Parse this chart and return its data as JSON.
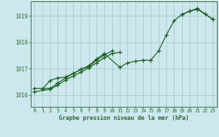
{
  "title": "Graphe pression niveau de la mer (hPa)",
  "bg_color": "#cce8ee",
  "grid_color": "#aacccc",
  "line_color": "#1a5c1a",
  "axis_color": "#336633",
  "xlim": [
    -0.5,
    23.5
  ],
  "ylim": [
    1015.55,
    1019.55
  ],
  "yticks": [
    1016,
    1017,
    1018,
    1019
  ],
  "xticks": [
    0,
    1,
    2,
    3,
    4,
    5,
    6,
    7,
    8,
    9,
    10,
    11,
    12,
    13,
    14,
    15,
    16,
    17,
    18,
    19,
    20,
    21,
    22,
    23
  ],
  "series": [
    {
      "x": [
        0,
        2,
        3,
        4,
        5,
        6,
        7,
        8,
        9,
        11,
        12,
        13,
        14,
        15,
        16,
        17,
        18,
        19,
        20,
        21,
        23
      ],
      "y": [
        1016.25,
        1016.25,
        1016.45,
        1016.65,
        1016.82,
        1016.97,
        1017.12,
        1017.37,
        1017.57,
        1017.05,
        1017.22,
        1017.28,
        1017.32,
        1017.32,
        1017.68,
        1018.28,
        1018.82,
        1019.05,
        1019.18,
        1019.25,
        1018.87
      ]
    },
    {
      "x": [
        1,
        2,
        3,
        4,
        5,
        6,
        7,
        8,
        9,
        10
      ],
      "y": [
        1016.22,
        1016.55,
        1016.65,
        1016.68,
        1016.82,
        1016.97,
        1017.07,
        1017.32,
        1017.52,
        1017.67
      ]
    },
    {
      "x": [
        0,
        2,
        3,
        4,
        5,
        6,
        7,
        8,
        9,
        10,
        11
      ],
      "y": [
        1016.12,
        1016.22,
        1016.37,
        1016.57,
        1016.72,
        1016.87,
        1017.02,
        1017.22,
        1017.42,
        1017.57,
        1017.62
      ]
    },
    {
      "x": [
        19,
        20,
        21,
        22,
        23
      ],
      "y": [
        1019.05,
        1019.18,
        1019.28,
        1019.07,
        1018.87
      ]
    }
  ],
  "marker": "+",
  "marker_size": 4,
  "line_width": 0.9
}
